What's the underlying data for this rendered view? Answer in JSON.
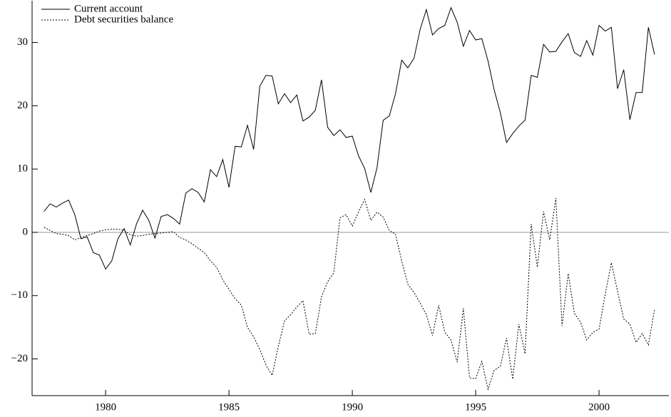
{
  "chart_data": {
    "type": "line",
    "x": [
      1977.5,
      1977.75,
      1978,
      1978.25,
      1978.5,
      1978.75,
      1979,
      1979.25,
      1979.5,
      1979.75,
      1980,
      1980.25,
      1980.5,
      1980.75,
      1981,
      1981.25,
      1981.5,
      1981.75,
      1982,
      1982.25,
      1982.5,
      1982.75,
      1983,
      1983.25,
      1983.5,
      1983.75,
      1984,
      1984.25,
      1984.5,
      1984.75,
      1985,
      1985.25,
      1985.5,
      1985.75,
      1986,
      1986.25,
      1986.5,
      1986.75,
      1987,
      1987.25,
      1987.5,
      1987.75,
      1988,
      1988.25,
      1988.5,
      1988.75,
      1989,
      1989.25,
      1989.5,
      1989.75,
      1990,
      1990.25,
      1990.5,
      1990.75,
      1991,
      1991.25,
      1991.5,
      1991.75,
      1992,
      1992.25,
      1992.5,
      1992.75,
      1993,
      1993.25,
      1993.5,
      1993.75,
      1994,
      1994.25,
      1994.5,
      1994.75,
      1995,
      1995.25,
      1995.5,
      1995.75,
      1996,
      1996.25,
      1996.5,
      1996.75,
      1997,
      1997.25,
      1997.5,
      1997.75,
      1998,
      1998.25,
      1998.5,
      1998.75,
      1999,
      1999.25,
      1999.5,
      1999.75,
      2000,
      2000.25,
      2000.5,
      2000.75,
      2001,
      2001.25,
      2001.5,
      2001.75,
      2002,
      2002.25
    ],
    "series": [
      {
        "name": "Current account",
        "color": "#000000",
        "dash": "solid",
        "values": [
          3.3,
          4.5,
          4.0,
          4.6,
          5.1,
          2.8,
          -1.0,
          -0.7,
          -3.2,
          -3.6,
          -5.8,
          -4.5,
          -1.0,
          0.6,
          -2.0,
          1.3,
          3.5,
          1.9,
          -0.9,
          2.5,
          2.8,
          2.2,
          1.3,
          6.2,
          6.9,
          6.3,
          4.8,
          9.9,
          8.8,
          11.5,
          7.1,
          13.6,
          13.5,
          16.9,
          13.1,
          23.1,
          24.8,
          24.7,
          20.3,
          21.9,
          20.5,
          21.7,
          17.6,
          18.2,
          19.3,
          24.1,
          16.6,
          15.3,
          16.2,
          15.0,
          15.2,
          12.1,
          10.1,
          6.3,
          10.2,
          17.7,
          18.4,
          21.9,
          27.2,
          26.0,
          27.5,
          32.1,
          35.2,
          31.2,
          32.2,
          32.7,
          35.5,
          33.2,
          29.4,
          31.9,
          30.4,
          30.6,
          27.1,
          22.5,
          18.9,
          14.2,
          15.6,
          16.8,
          17.7,
          24.8,
          24.5,
          29.7,
          28.5,
          28.6,
          30.1,
          31.4,
          28.4,
          27.8,
          30.3,
          28.0,
          32.7,
          31.8,
          32.4,
          22.7,
          25.7,
          17.8,
          22.1,
          22.1,
          32.4,
          28.1
        ]
      },
      {
        "name": "Debt securities balance",
        "color": "#000000",
        "dash": "dotted",
        "values": [
          0.8,
          0.3,
          -0.2,
          -0.3,
          -0.5,
          -1.2,
          -0.8,
          -0.5,
          -0.2,
          0.2,
          0.4,
          0.5,
          0.5,
          0.3,
          -0.4,
          -0.6,
          -0.5,
          -0.3,
          -0.2,
          -0.1,
          0.0,
          0.1,
          -0.8,
          -1.2,
          -1.8,
          -2.5,
          -3.2,
          -4.5,
          -5.5,
          -7.5,
          -9.0,
          -10.5,
          -11.5,
          -15.0,
          -16.5,
          -18.5,
          -21.0,
          -22.6,
          -18.0,
          -14.0,
          -13.0,
          -11.8,
          -10.8,
          -16.1,
          -16.0,
          -10.2,
          -7.8,
          -6.4,
          2.3,
          2.8,
          1.0,
          3.2,
          5.2,
          1.9,
          3.2,
          2.4,
          0.3,
          -0.3,
          -4.5,
          -8.2,
          -9.5,
          -11.2,
          -13.0,
          -16.3,
          -11.5,
          -15.8,
          -17.0,
          -20.5,
          -12.0,
          -23.0,
          -23.1,
          -20.4,
          -24.8,
          -21.8,
          -21.2,
          -16.7,
          -23.2,
          -14.5,
          -19.2,
          1.3,
          -5.5,
          3.3,
          -1.2,
          5.4,
          -14.8,
          -6.5,
          -12.8,
          -14.2,
          -17.0,
          -15.8,
          -15.3,
          -9.8,
          -4.8,
          -9.3,
          -13.7,
          -14.5,
          -17.4,
          -16.0,
          -17.8,
          -12.2
        ]
      }
    ],
    "xlim": [
      1977.02,
      2002.83
    ],
    "xticks": [
      1980,
      1985,
      1990,
      1995,
      2000
    ],
    "ylim": [
      -25.8,
      36.6
    ],
    "yticks": [
      {
        "value": -20,
        "label": "−20"
      },
      {
        "value": -10,
        "label": "−10"
      },
      0,
      10,
      20,
      30
    ],
    "reference_line": 0,
    "legend": "upper left"
  }
}
